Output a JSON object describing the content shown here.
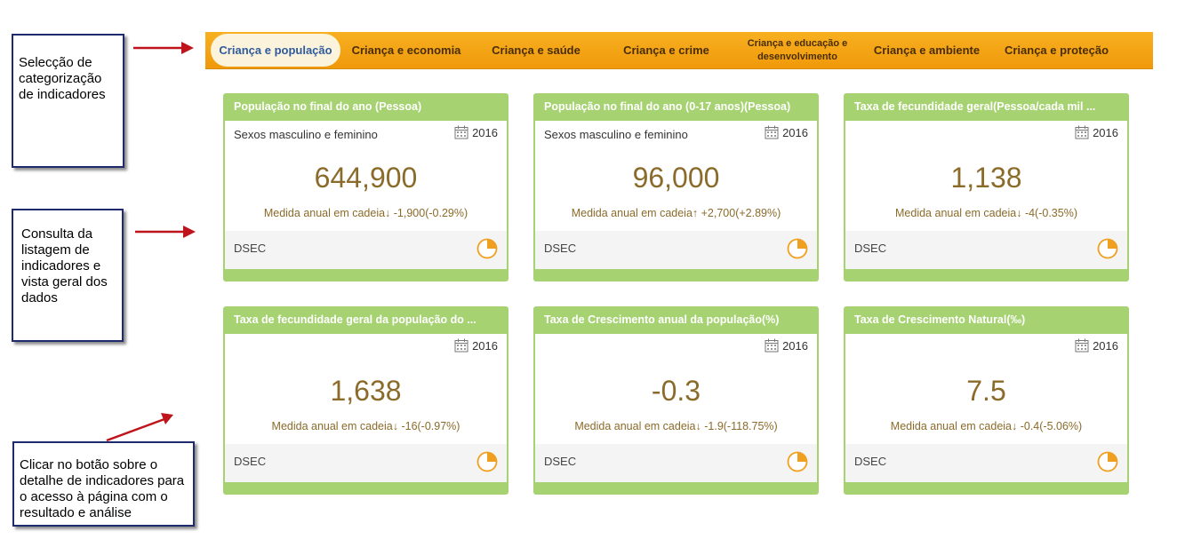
{
  "annotations": {
    "selection": "Selecção de categorização de indicadores",
    "listing": "Consulta da listagem de indicadores e vista geral dos dados",
    "click": "Clicar no botão sobre o detalhe de indicadores para o acesso à página com o resultado e análise"
  },
  "nav": {
    "tabs": [
      {
        "label": "Criança e população",
        "active": true
      },
      {
        "label": "Criança e economia"
      },
      {
        "label": "Criança e saúde"
      },
      {
        "label": "Criança e crime"
      },
      {
        "label": "Criança e educação e desenvolvimento"
      },
      {
        "label": "Criança e ambiente"
      },
      {
        "label": "Criança e proteção"
      }
    ]
  },
  "cards": [
    {
      "title": "População no final do ano (Pessoa)",
      "subtitle": "Sexos masculino e feminino",
      "year": "2016",
      "value": "644,900",
      "change": "Medida anual em cadeia↓ -1,900(-0.29%)",
      "source": "DSEC"
    },
    {
      "title": "População no final do ano (0-17 anos)(Pessoa)",
      "subtitle": "Sexos masculino e feminino",
      "year": "2016",
      "value": "96,000",
      "change": "Medida anual em cadeia↑ +2,700(+2.89%)",
      "source": "DSEC"
    },
    {
      "title": "Taxa de fecundidade geral(Pessoa/cada mil ...",
      "subtitle": "",
      "year": "2016",
      "value": "1,138",
      "change": "Medida anual em cadeia↓ -4(-0.35%)",
      "source": "DSEC"
    },
    {
      "title": "Taxa de fecundidade geral da população do ...",
      "subtitle": "",
      "year": "2016",
      "value": "1,638",
      "change": "Medida anual em cadeia↓ -16(-0.97%)",
      "source": "DSEC"
    },
    {
      "title": "Taxa de Crescimento anual da população(%)",
      "subtitle": "",
      "year": "2016",
      "value": "-0.3",
      "change": "Medida anual em cadeia↓ -1.9(-118.75%)",
      "source": "DSEC"
    },
    {
      "title": "Taxa de Crescimento Natural(‰)",
      "subtitle": "",
      "year": "2016",
      "value": "7.5",
      "change": "Medida anual em cadeia↓ -0.4(-5.06%)",
      "source": "DSEC"
    }
  ],
  "colors": {
    "nav_orange": "#f0990a",
    "card_green": "#a6d271",
    "value_brown": "#8b6b2a",
    "active_tab_text": "#2f5a9c",
    "callout_border": "#1f2a6e",
    "arrow_red": "#c0141c"
  },
  "icons": {
    "calendar": "calendar-icon",
    "chart": "pie-chart-icon"
  }
}
